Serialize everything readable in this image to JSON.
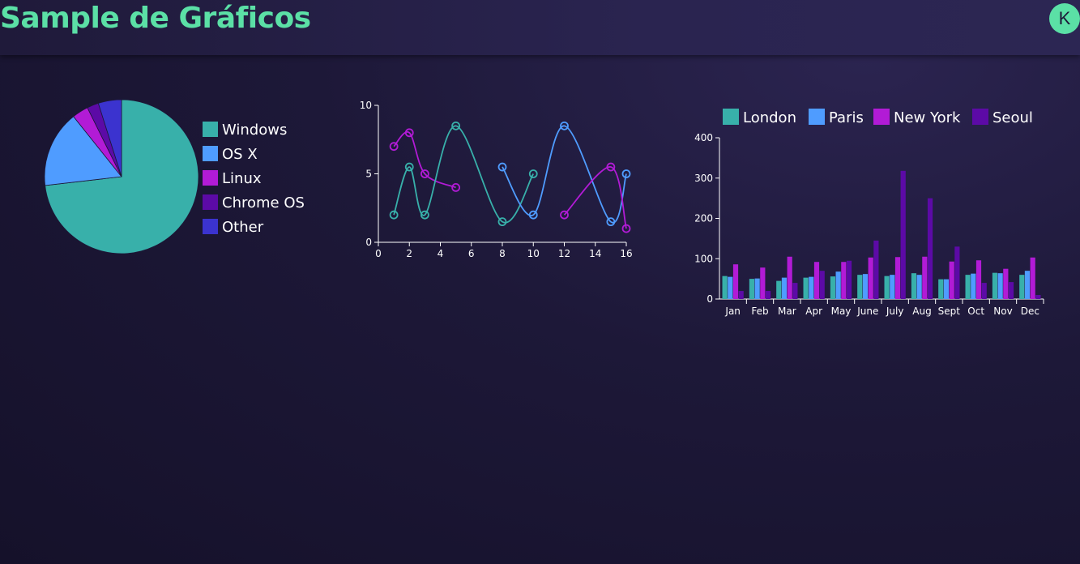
{
  "header": {
    "title": "Sample de Gráficos",
    "avatar_initial": "K"
  },
  "colors": {
    "accent": "#5be0a6"
  },
  "chart_data": [
    {
      "type": "pie",
      "labels": [
        "Windows",
        "OS X",
        "Linux",
        "Chrome OS",
        "Other"
      ],
      "values": [
        75,
        16.5,
        3.5,
        2.5,
        5
      ],
      "colors": [
        "#38b0aa",
        "#4f9cff",
        "#b21bd6",
        "#5c0aa6",
        "#3b33cf"
      ],
      "legend": "right"
    },
    {
      "type": "line",
      "xlim": [
        0,
        16
      ],
      "ylim": [
        0,
        10
      ],
      "xticks": [
        0,
        2,
        4,
        6,
        8,
        10,
        12,
        14,
        16
      ],
      "yticks": [
        0,
        5,
        10
      ],
      "series": [
        {
          "color": "#b21bd6",
          "points": [
            [
              1,
              7
            ],
            [
              2,
              8
            ],
            [
              3,
              5
            ],
            [
              5,
              4
            ]
          ]
        },
        {
          "color": "#38b0aa",
          "points": [
            [
              1,
              2
            ],
            [
              2,
              5.5
            ],
            [
              3,
              2
            ],
            [
              5,
              8.5
            ],
            [
              8,
              1.5
            ],
            [
              10,
              5
            ]
          ]
        },
        {
          "color": "#4f9cff",
          "points": [
            [
              8,
              5.5
            ],
            [
              10,
              2
            ],
            [
              12,
              8.5
            ],
            [
              15,
              1.5
            ],
            [
              16,
              5
            ]
          ]
        },
        {
          "color": "#b21bd6",
          "points": [
            [
              12,
              2
            ],
            [
              15,
              5.5
            ],
            [
              16,
              1
            ]
          ]
        }
      ]
    },
    {
      "type": "bar",
      "categories": [
        "Jan",
        "Feb",
        "Mar",
        "Apr",
        "May",
        "June",
        "July",
        "Aug",
        "Sept",
        "Oct",
        "Nov",
        "Dec"
      ],
      "ylim": [
        0,
        400
      ],
      "yticks": [
        0,
        100,
        200,
        300,
        400
      ],
      "legend": "top",
      "series": [
        {
          "name": "London",
          "color": "#38b0aa",
          "values": [
            57,
            50,
            45,
            53,
            56,
            60,
            57,
            64,
            49,
            60,
            65,
            60
          ]
        },
        {
          "name": "Paris",
          "color": "#4f9cff",
          "values": [
            55,
            51,
            53,
            55,
            68,
            62,
            60,
            60,
            49,
            63,
            64,
            70
          ]
        },
        {
          "name": "New York",
          "color": "#b21bd6",
          "values": [
            86,
            78,
            105,
            92,
            92,
            103,
            104,
            105,
            93,
            96,
            75,
            103
          ]
        },
        {
          "name": "Seoul",
          "color": "#5c0aa6",
          "values": [
            20,
            20,
            40,
            70,
            95,
            145,
            318,
            250,
            130,
            40,
            42,
            10
          ]
        }
      ]
    }
  ]
}
